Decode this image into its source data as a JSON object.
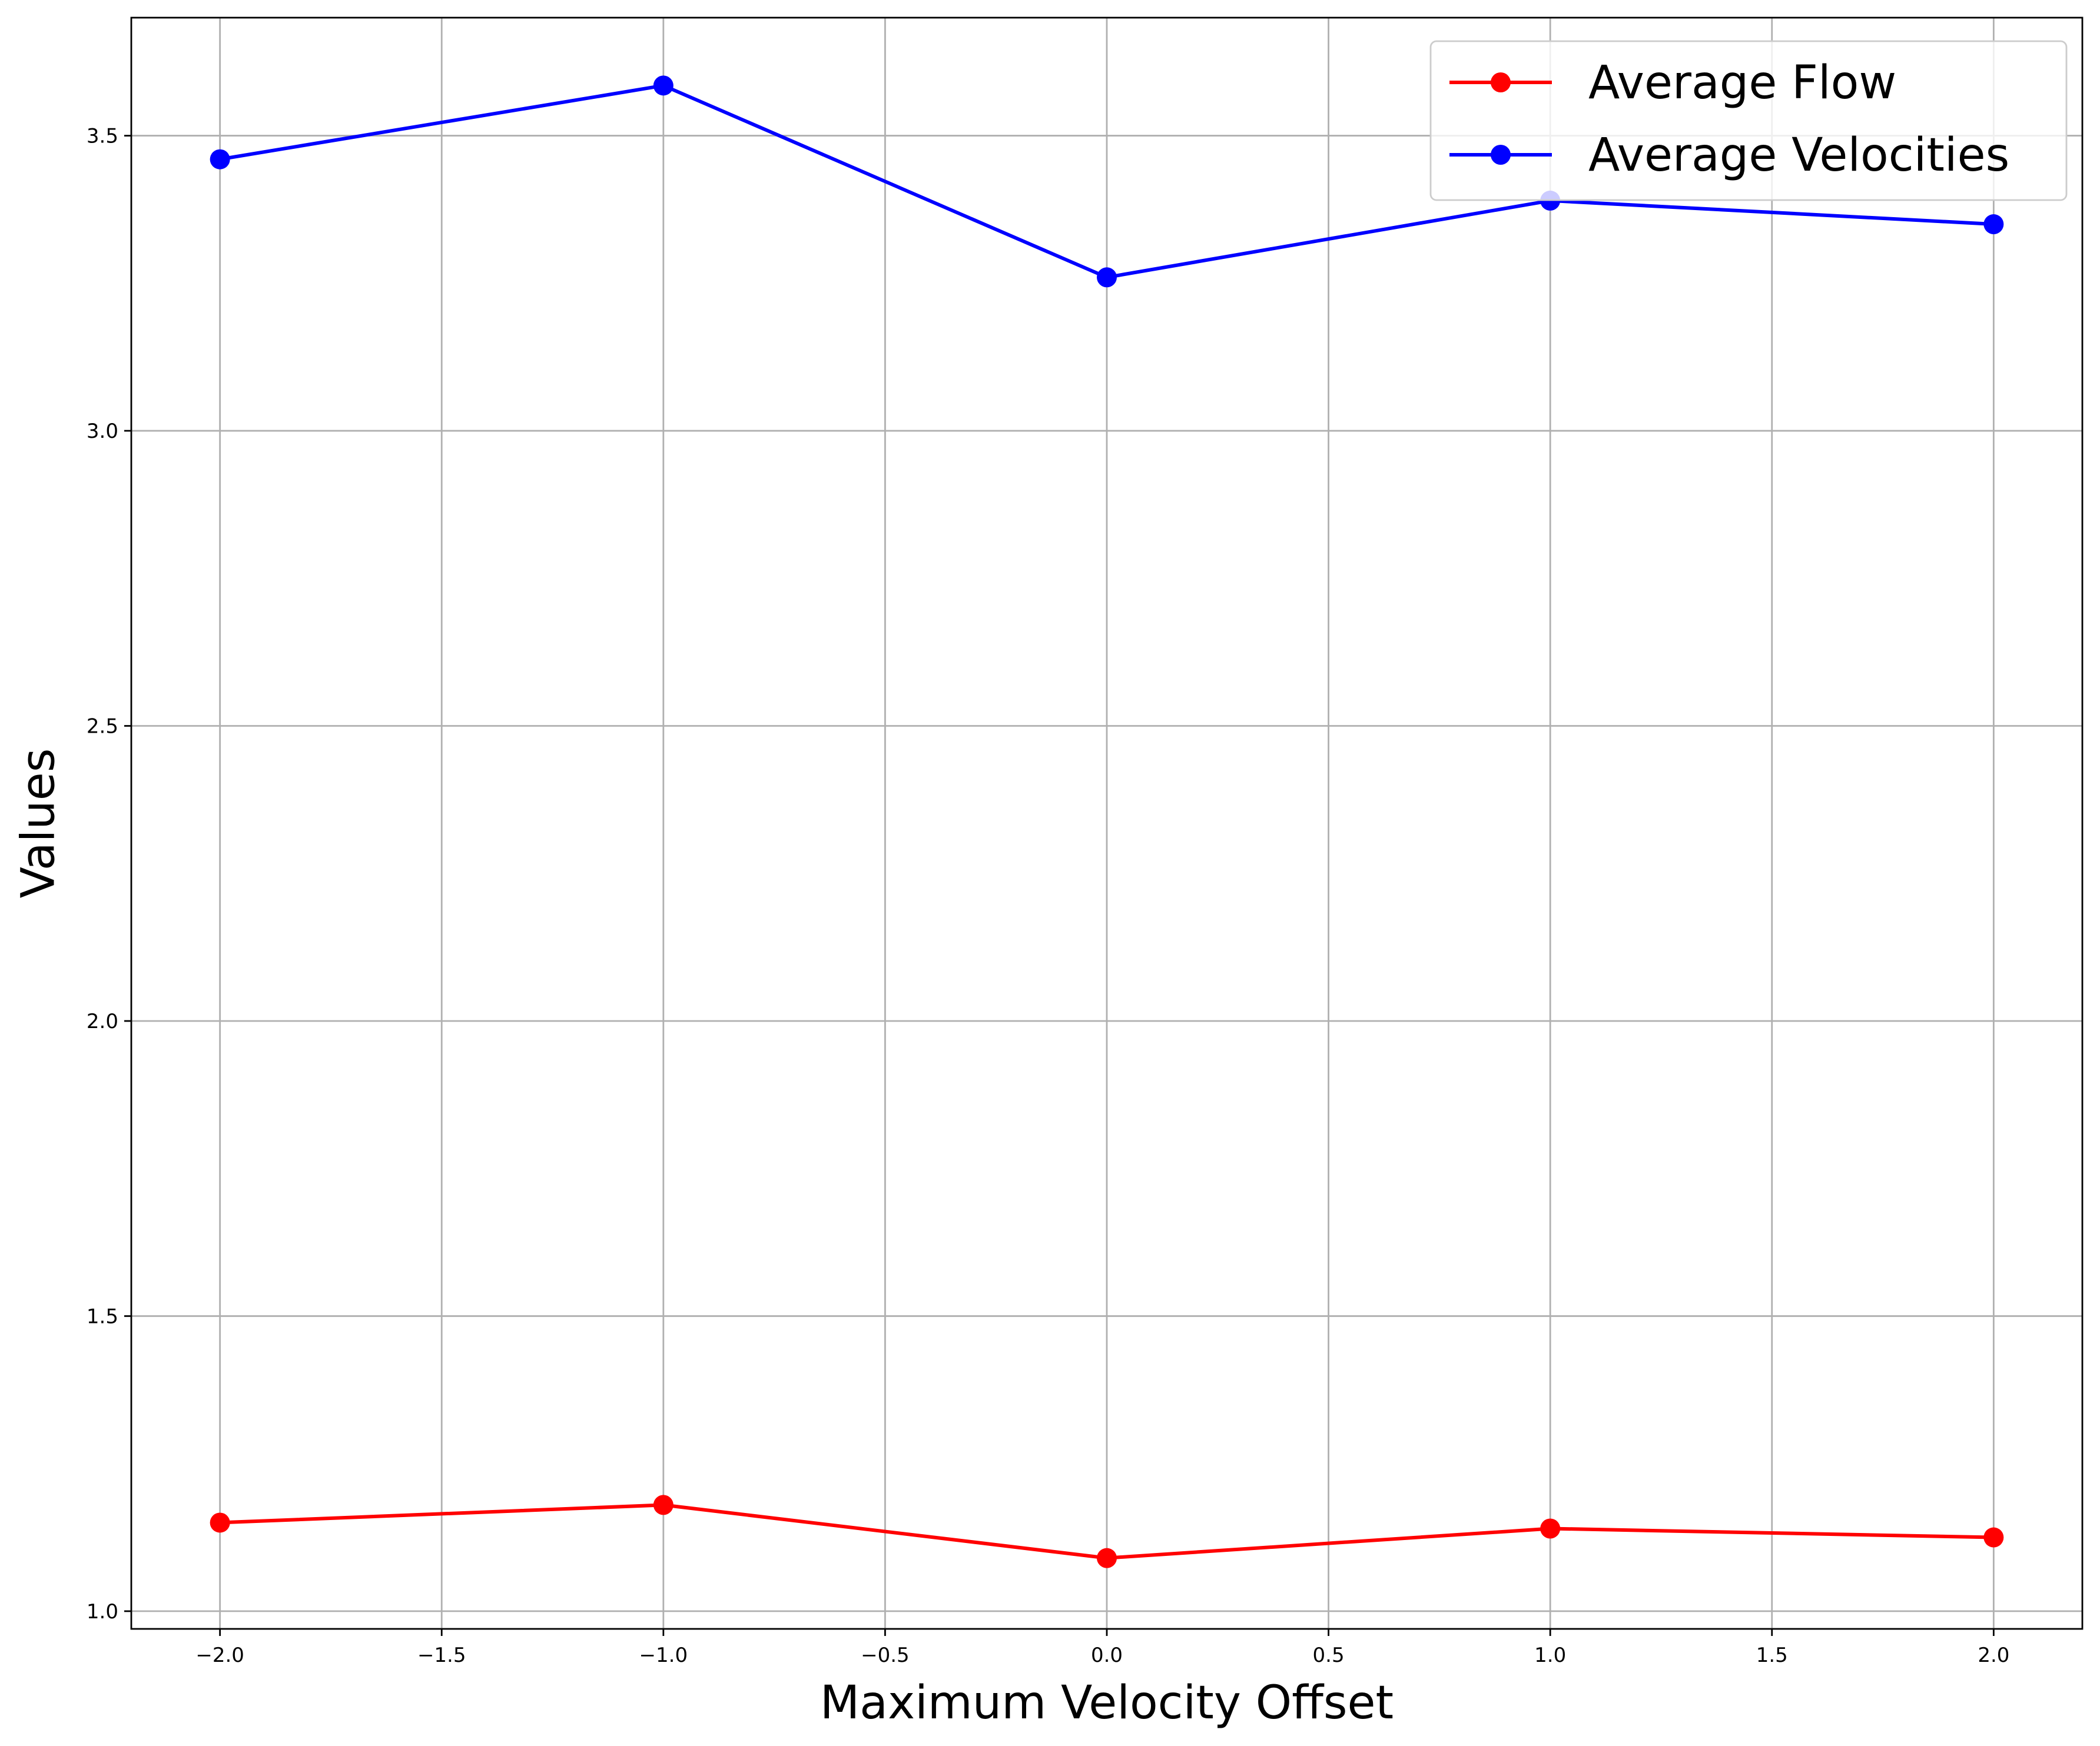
{
  "chart_data": {
    "type": "line",
    "title": "",
    "xlabel": "Maximum Velocity Offset",
    "ylabel": "Values",
    "xlim": [
      -2.2,
      2.2
    ],
    "ylim": [
      0.97,
      3.7
    ],
    "x_ticks": [
      -2.0,
      -1.5,
      -1.0,
      -0.5,
      0.0,
      0.5,
      1.0,
      1.5,
      2.0
    ],
    "x_tick_labels": [
      "−2.0",
      "−1.5",
      "−1.0",
      "−0.5",
      "0.0",
      "0.5",
      "1.0",
      "1.5",
      "2.0"
    ],
    "y_ticks": [
      1.0,
      1.5,
      2.0,
      2.5,
      3.0,
      3.5
    ],
    "y_tick_labels": [
      "1.0",
      "1.5",
      "2.0",
      "2.5",
      "3.0",
      "3.5"
    ],
    "grid": true,
    "legend_position": "top-right",
    "x": [
      -2,
      -1,
      0,
      1,
      2
    ],
    "series": [
      {
        "name": "Average Flow",
        "color": "#ff0000",
        "values": [
          1.15,
          1.18,
          1.09,
          1.14,
          1.125
        ]
      },
      {
        "name": "Average Velocities",
        "color": "#0000ff",
        "values": [
          3.46,
          3.585,
          3.26,
          3.39,
          3.35
        ]
      }
    ]
  }
}
